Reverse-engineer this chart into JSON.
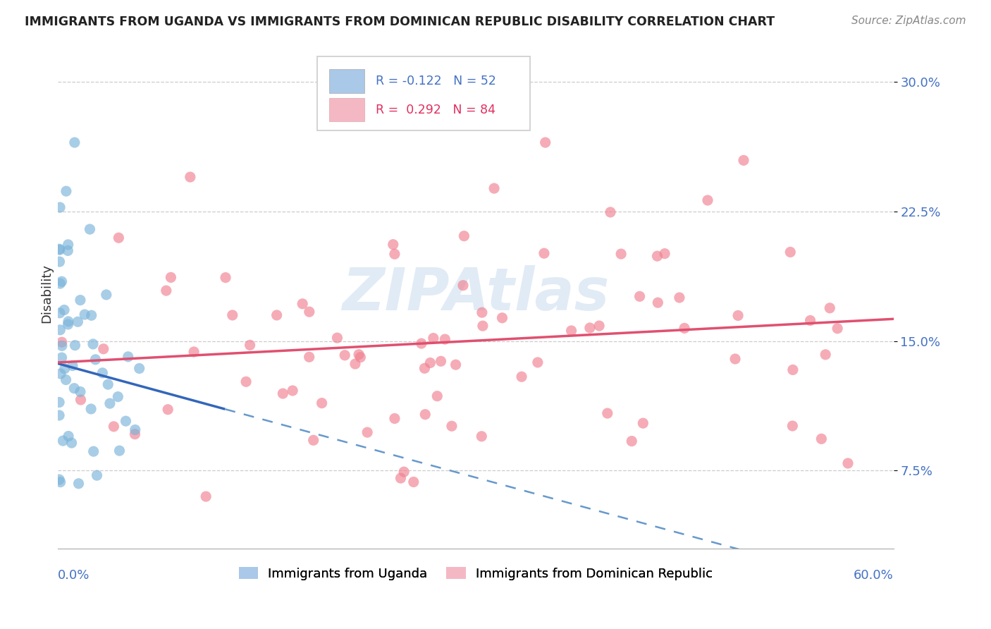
{
  "title": "IMMIGRANTS FROM UGANDA VS IMMIGRANTS FROM DOMINICAN REPUBLIC DISABILITY CORRELATION CHART",
  "source": "Source: ZipAtlas.com",
  "ylabel": "Disability",
  "y_ticks": [
    0.075,
    0.15,
    0.225,
    0.3
  ],
  "y_tick_labels": [
    "7.5%",
    "15.0%",
    "22.5%",
    "30.0%"
  ],
  "xlim": [
    0.0,
    0.6
  ],
  "ylim": [
    0.03,
    0.325
  ],
  "series1_name": "Immigrants from Uganda",
  "series2_name": "Immigrants from Dominican Republic",
  "series1_color": "#7ab3d9",
  "series2_color": "#f08090",
  "series1_legend_color": "#aac8e8",
  "series2_legend_color": "#f4b8c4",
  "watermark": "ZIPAtlas",
  "background_color": "#ffffff",
  "grid_color": "#cccccc",
  "tick_color": "#4472C4",
  "title_color": "#222222",
  "source_color": "#888888"
}
